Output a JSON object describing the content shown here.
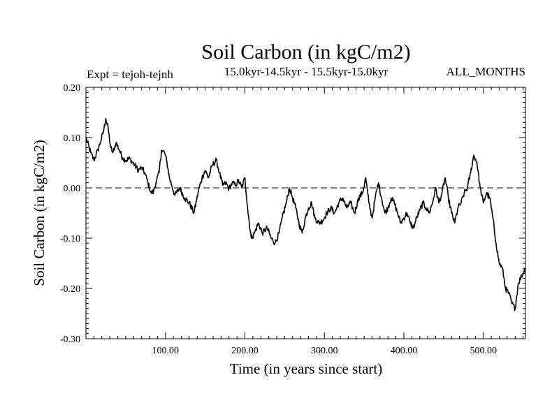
{
  "chart_data": {
    "type": "line",
    "title": "Soil Carbon (in kgC/m2)",
    "subtitle": "15.0kyr-14.5kyr - 15.5kyr-15.0kyr",
    "experiment": "Expt = tejoh-tejnh",
    "period": "ALL_MONTHS",
    "xlabel": "Time (in years since start)",
    "ylabel": "Soil Carbon (in kgC/m2)",
    "xlim": [
      0,
      553
    ],
    "ylim": [
      -0.3,
      0.2
    ],
    "x_ticks": [
      100,
      200,
      300,
      400,
      500
    ],
    "x_tick_labels": [
      "100.00",
      "200.00",
      "300.00",
      "400.00",
      "500.00"
    ],
    "y_ticks": [
      -0.3,
      -0.2,
      -0.1,
      0.0,
      0.1,
      0.2
    ],
    "y_tick_labels": [
      "-0.30",
      "-0.20",
      "-0.10",
      "0.00",
      "0.10",
      "0.20"
    ],
    "reference_line": 0.0,
    "series": [
      {
        "name": "Soil Carbon",
        "x": [
          0,
          6,
          10,
          15,
          18,
          22,
          25,
          28,
          31,
          34,
          38,
          42,
          46,
          50,
          55,
          60,
          66,
          70,
          74,
          78,
          82,
          85,
          88,
          92,
          95,
          99,
          102,
          105,
          108,
          112,
          118,
          124,
          130,
          136,
          141,
          146,
          150,
          154,
          159,
          164,
          168,
          172,
          176,
          180,
          184,
          188,
          192,
          196,
          200,
          204,
          208,
          212,
          217,
          222,
          228,
          233,
          238,
          243,
          247,
          252,
          256,
          260,
          264,
          268,
          272,
          276,
          280,
          284,
          288,
          293,
          298,
          303,
          308,
          313,
          318,
          323,
          328,
          333,
          338,
          343,
          348,
          352,
          356,
          360,
          364,
          368,
          372,
          376,
          380,
          384,
          388,
          392,
          396,
          400,
          404,
          408,
          412,
          416,
          420,
          424,
          428,
          432,
          436,
          440,
          444,
          448,
          452,
          456,
          460,
          464,
          468,
          472,
          476,
          480,
          484,
          488,
          492,
          496,
          500,
          504,
          508,
          512,
          516,
          520,
          524,
          528,
          532,
          536,
          540,
          544,
          548,
          553
        ],
        "y": [
          0.1,
          0.07,
          0.055,
          0.075,
          0.09,
          0.112,
          0.138,
          0.118,
          0.08,
          0.07,
          0.09,
          0.075,
          0.06,
          0.055,
          0.058,
          0.048,
          0.035,
          0.04,
          0.03,
          0.01,
          -0.01,
          -0.008,
          0.01,
          0.03,
          0.075,
          0.07,
          0.05,
          0.02,
          0.005,
          -0.015,
          0.0,
          -0.02,
          -0.03,
          -0.05,
          -0.01,
          0.02,
          0.035,
          0.02,
          0.045,
          0.055,
          0.03,
          0.005,
          0.01,
          -0.002,
          0.01,
          0.005,
          0.015,
          0.0,
          0.02,
          -0.05,
          -0.1,
          -0.09,
          -0.07,
          -0.09,
          -0.08,
          -0.1,
          -0.11,
          -0.09,
          -0.06,
          -0.03,
          0.0,
          -0.02,
          -0.04,
          -0.07,
          -0.09,
          -0.06,
          -0.04,
          -0.03,
          -0.06,
          -0.07,
          -0.065,
          -0.05,
          -0.04,
          -0.05,
          -0.03,
          -0.02,
          -0.04,
          -0.03,
          -0.05,
          -0.02,
          -0.01,
          0.02,
          -0.03,
          -0.06,
          -0.02,
          0.01,
          -0.02,
          -0.05,
          -0.04,
          -0.02,
          -0.03,
          -0.05,
          -0.07,
          -0.06,
          -0.05,
          -0.07,
          -0.08,
          -0.06,
          -0.045,
          -0.03,
          -0.04,
          -0.05,
          -0.03,
          0.0,
          -0.03,
          -0.01,
          0.02,
          -0.02,
          -0.05,
          -0.07,
          -0.04,
          -0.03,
          -0.01,
          0.0,
          0.03,
          0.065,
          0.05,
          0.0,
          -0.03,
          -0.01,
          -0.02,
          -0.06,
          -0.11,
          -0.15,
          -0.16,
          -0.2,
          -0.21,
          -0.23,
          -0.24,
          -0.19,
          -0.175,
          -0.16
        ]
      }
    ]
  }
}
